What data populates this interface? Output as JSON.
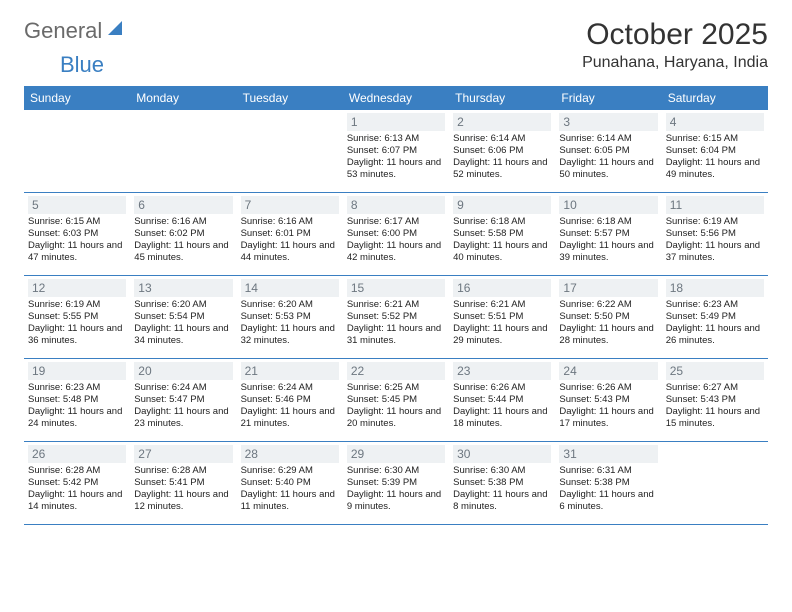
{
  "logo": {
    "text1": "General",
    "text2": "Blue"
  },
  "title": "October 2025",
  "location": "Punahana, Haryana, India",
  "colors": {
    "header_bg": "#3a7fc2",
    "header_text": "#ffffff",
    "daynum_bg": "#eef1f3",
    "daynum_text": "#6d7780",
    "body_text": "#222222",
    "logo_gray": "#6a6a6a",
    "logo_blue": "#3a7fc2",
    "border": "#3a7fc2"
  },
  "day_names": [
    "Sunday",
    "Monday",
    "Tuesday",
    "Wednesday",
    "Thursday",
    "Friday",
    "Saturday"
  ],
  "weeks": [
    [
      {
        "n": "",
        "sr": "",
        "ss": "",
        "dl": ""
      },
      {
        "n": "",
        "sr": "",
        "ss": "",
        "dl": ""
      },
      {
        "n": "",
        "sr": "",
        "ss": "",
        "dl": ""
      },
      {
        "n": "1",
        "sr": "Sunrise: 6:13 AM",
        "ss": "Sunset: 6:07 PM",
        "dl": "Daylight: 11 hours and 53 minutes."
      },
      {
        "n": "2",
        "sr": "Sunrise: 6:14 AM",
        "ss": "Sunset: 6:06 PM",
        "dl": "Daylight: 11 hours and 52 minutes."
      },
      {
        "n": "3",
        "sr": "Sunrise: 6:14 AM",
        "ss": "Sunset: 6:05 PM",
        "dl": "Daylight: 11 hours and 50 minutes."
      },
      {
        "n": "4",
        "sr": "Sunrise: 6:15 AM",
        "ss": "Sunset: 6:04 PM",
        "dl": "Daylight: 11 hours and 49 minutes."
      }
    ],
    [
      {
        "n": "5",
        "sr": "Sunrise: 6:15 AM",
        "ss": "Sunset: 6:03 PM",
        "dl": "Daylight: 11 hours and 47 minutes."
      },
      {
        "n": "6",
        "sr": "Sunrise: 6:16 AM",
        "ss": "Sunset: 6:02 PM",
        "dl": "Daylight: 11 hours and 45 minutes."
      },
      {
        "n": "7",
        "sr": "Sunrise: 6:16 AM",
        "ss": "Sunset: 6:01 PM",
        "dl": "Daylight: 11 hours and 44 minutes."
      },
      {
        "n": "8",
        "sr": "Sunrise: 6:17 AM",
        "ss": "Sunset: 6:00 PM",
        "dl": "Daylight: 11 hours and 42 minutes."
      },
      {
        "n": "9",
        "sr": "Sunrise: 6:18 AM",
        "ss": "Sunset: 5:58 PM",
        "dl": "Daylight: 11 hours and 40 minutes."
      },
      {
        "n": "10",
        "sr": "Sunrise: 6:18 AM",
        "ss": "Sunset: 5:57 PM",
        "dl": "Daylight: 11 hours and 39 minutes."
      },
      {
        "n": "11",
        "sr": "Sunrise: 6:19 AM",
        "ss": "Sunset: 5:56 PM",
        "dl": "Daylight: 11 hours and 37 minutes."
      }
    ],
    [
      {
        "n": "12",
        "sr": "Sunrise: 6:19 AM",
        "ss": "Sunset: 5:55 PM",
        "dl": "Daylight: 11 hours and 36 minutes."
      },
      {
        "n": "13",
        "sr": "Sunrise: 6:20 AM",
        "ss": "Sunset: 5:54 PM",
        "dl": "Daylight: 11 hours and 34 minutes."
      },
      {
        "n": "14",
        "sr": "Sunrise: 6:20 AM",
        "ss": "Sunset: 5:53 PM",
        "dl": "Daylight: 11 hours and 32 minutes."
      },
      {
        "n": "15",
        "sr": "Sunrise: 6:21 AM",
        "ss": "Sunset: 5:52 PM",
        "dl": "Daylight: 11 hours and 31 minutes."
      },
      {
        "n": "16",
        "sr": "Sunrise: 6:21 AM",
        "ss": "Sunset: 5:51 PM",
        "dl": "Daylight: 11 hours and 29 minutes."
      },
      {
        "n": "17",
        "sr": "Sunrise: 6:22 AM",
        "ss": "Sunset: 5:50 PM",
        "dl": "Daylight: 11 hours and 28 minutes."
      },
      {
        "n": "18",
        "sr": "Sunrise: 6:23 AM",
        "ss": "Sunset: 5:49 PM",
        "dl": "Daylight: 11 hours and 26 minutes."
      }
    ],
    [
      {
        "n": "19",
        "sr": "Sunrise: 6:23 AM",
        "ss": "Sunset: 5:48 PM",
        "dl": "Daylight: 11 hours and 24 minutes."
      },
      {
        "n": "20",
        "sr": "Sunrise: 6:24 AM",
        "ss": "Sunset: 5:47 PM",
        "dl": "Daylight: 11 hours and 23 minutes."
      },
      {
        "n": "21",
        "sr": "Sunrise: 6:24 AM",
        "ss": "Sunset: 5:46 PM",
        "dl": "Daylight: 11 hours and 21 minutes."
      },
      {
        "n": "22",
        "sr": "Sunrise: 6:25 AM",
        "ss": "Sunset: 5:45 PM",
        "dl": "Daylight: 11 hours and 20 minutes."
      },
      {
        "n": "23",
        "sr": "Sunrise: 6:26 AM",
        "ss": "Sunset: 5:44 PM",
        "dl": "Daylight: 11 hours and 18 minutes."
      },
      {
        "n": "24",
        "sr": "Sunrise: 6:26 AM",
        "ss": "Sunset: 5:43 PM",
        "dl": "Daylight: 11 hours and 17 minutes."
      },
      {
        "n": "25",
        "sr": "Sunrise: 6:27 AM",
        "ss": "Sunset: 5:43 PM",
        "dl": "Daylight: 11 hours and 15 minutes."
      }
    ],
    [
      {
        "n": "26",
        "sr": "Sunrise: 6:28 AM",
        "ss": "Sunset: 5:42 PM",
        "dl": "Daylight: 11 hours and 14 minutes."
      },
      {
        "n": "27",
        "sr": "Sunrise: 6:28 AM",
        "ss": "Sunset: 5:41 PM",
        "dl": "Daylight: 11 hours and 12 minutes."
      },
      {
        "n": "28",
        "sr": "Sunrise: 6:29 AM",
        "ss": "Sunset: 5:40 PM",
        "dl": "Daylight: 11 hours and 11 minutes."
      },
      {
        "n": "29",
        "sr": "Sunrise: 6:30 AM",
        "ss": "Sunset: 5:39 PM",
        "dl": "Daylight: 11 hours and 9 minutes."
      },
      {
        "n": "30",
        "sr": "Sunrise: 6:30 AM",
        "ss": "Sunset: 5:38 PM",
        "dl": "Daylight: 11 hours and 8 minutes."
      },
      {
        "n": "31",
        "sr": "Sunrise: 6:31 AM",
        "ss": "Sunset: 5:38 PM",
        "dl": "Daylight: 11 hours and 6 minutes."
      },
      {
        "n": "",
        "sr": "",
        "ss": "",
        "dl": ""
      }
    ]
  ]
}
